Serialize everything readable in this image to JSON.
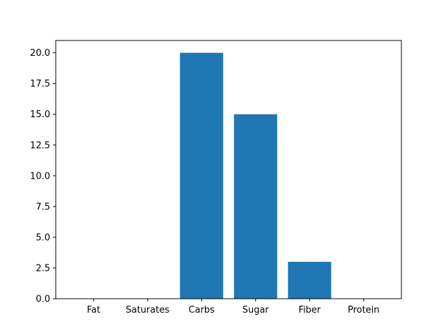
{
  "chart_data": {
    "type": "bar",
    "title": "",
    "xlabel": "",
    "ylabel": "",
    "categories": [
      "Fat",
      "Saturates",
      "Carbs",
      "Sugar",
      "Fiber",
      "Protein"
    ],
    "values": [
      0,
      0,
      20,
      15,
      3,
      0
    ],
    "ylim": [
      0,
      21
    ],
    "yticks": [
      0.0,
      2.5,
      5.0,
      7.5,
      10.0,
      12.5,
      15.0,
      17.5,
      20.0
    ],
    "ytick_labels": [
      "0.0",
      "2.5",
      "5.0",
      "7.5",
      "10.0",
      "12.5",
      "15.0",
      "17.5",
      "20.0"
    ],
    "grid": false,
    "bar_color": "#1f77b4"
  }
}
